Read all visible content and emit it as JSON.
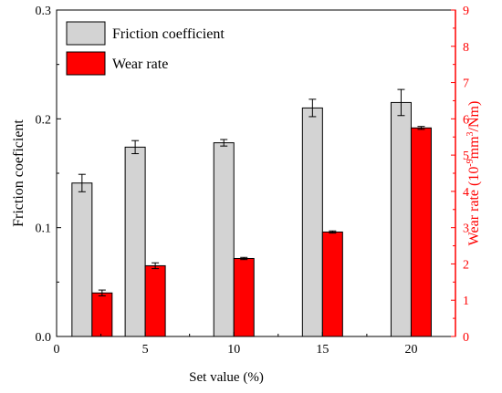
{
  "chart_data": {
    "type": "bar",
    "xlabel": "Set value (%)",
    "x_ticks": [
      "0",
      "5",
      "10",
      "15",
      "20"
    ],
    "x_tick_values": [
      0,
      5,
      10,
      15,
      20
    ],
    "xlim": [
      0,
      22.5
    ],
    "y_left": {
      "label": "Friction coeficient",
      "ylim": [
        0.0,
        0.3
      ],
      "ticks": [
        "0.0",
        "0.1",
        "0.2",
        "0.3"
      ],
      "tick_values": [
        0.0,
        0.1,
        0.2,
        0.3
      ],
      "color": "#000000"
    },
    "y_right": {
      "label_parts": [
        "Wear rate (10",
        "-9",
        "mm",
        "3",
        "/Nm)"
      ],
      "ylim": [
        0,
        9
      ],
      "ticks": [
        "0",
        "1",
        "2",
        "3",
        "4",
        "5",
        "6",
        "7",
        "8",
        "9"
      ],
      "tick_values": [
        0,
        1,
        2,
        3,
        4,
        5,
        6,
        7,
        8,
        9
      ],
      "color": "#ff0000"
    },
    "series": [
      {
        "name": "Friction coefficient",
        "axis": "left",
        "color": "#d3d3d3",
        "x": [
          2,
          5,
          10,
          15,
          20
        ],
        "values": [
          0.141,
          0.174,
          0.178,
          0.21,
          0.215
        ],
        "errors": [
          0.008,
          0.006,
          0.003,
          0.008,
          0.012
        ]
      },
      {
        "name": "Wear rate",
        "axis": "right",
        "color": "#ff0000",
        "x": [
          2,
          5,
          10,
          15,
          20
        ],
        "values": [
          1.2,
          1.95,
          2.15,
          2.88,
          5.75
        ],
        "errors": [
          0.08,
          0.08,
          0.03,
          0.03,
          0.04
        ]
      }
    ],
    "legend": {
      "position": "top-left",
      "entries": [
        "Friction coefficient",
        "Wear rate"
      ]
    },
    "grid": false
  }
}
